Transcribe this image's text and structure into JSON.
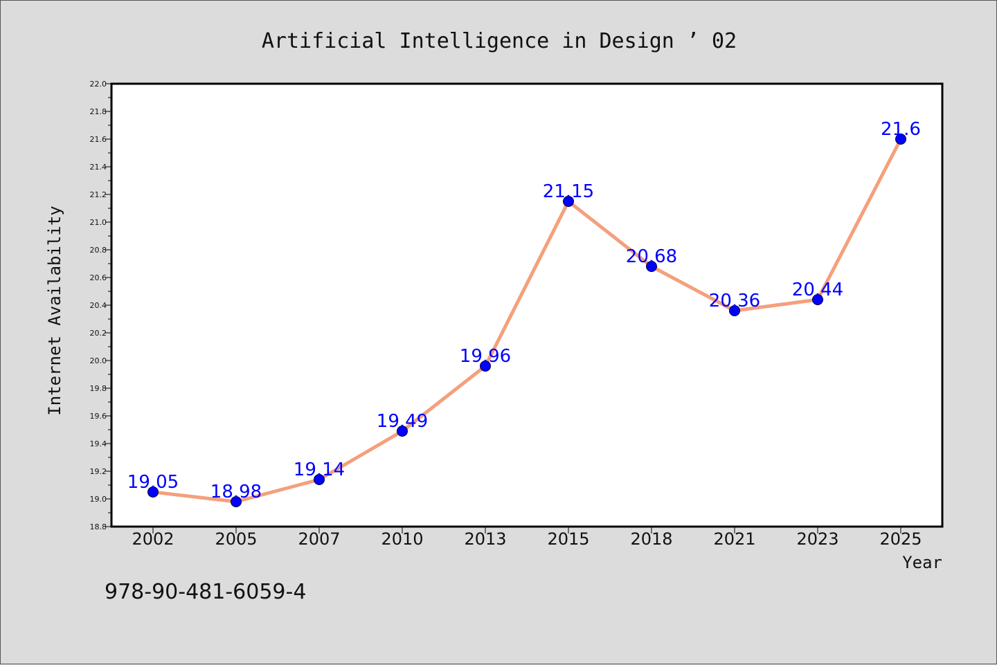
{
  "chart_data": {
    "type": "line",
    "title": "Artificial Intelligence in Design ’ 02",
    "xlabel": "Year",
    "ylabel": "Internet Availability",
    "categories": [
      "2002",
      "2005",
      "2007",
      "2010",
      "2013",
      "2015",
      "2018",
      "2021",
      "2023",
      "2025"
    ],
    "values": [
      19.05,
      18.98,
      19.14,
      19.49,
      19.96,
      21.15,
      20.68,
      20.36,
      20.44,
      21.6
    ],
    "data_labels": [
      "19.05",
      "18.98",
      "19.14",
      "19.49",
      "19.96",
      "21.15",
      "20.68",
      "20.36",
      "20.44",
      "21.6"
    ],
    "ylim": [
      18.8,
      22.0
    ],
    "yticks": [
      "18.8",
      "19.0",
      "19.2",
      "19.4",
      "19.6",
      "19.8",
      "20.0",
      "20.2",
      "20.4",
      "20.6",
      "20.8",
      "21.0",
      "21.2",
      "21.4",
      "21.6",
      "21.8",
      "22.0"
    ],
    "grid": false,
    "line_color": "#f4a07c",
    "marker_color": "#0000ff",
    "label_color": "#0000ff",
    "plot_background": "#ffffff",
    "figure_background": "#dcdcdc"
  },
  "annotation": "978-90-481-6059-4"
}
